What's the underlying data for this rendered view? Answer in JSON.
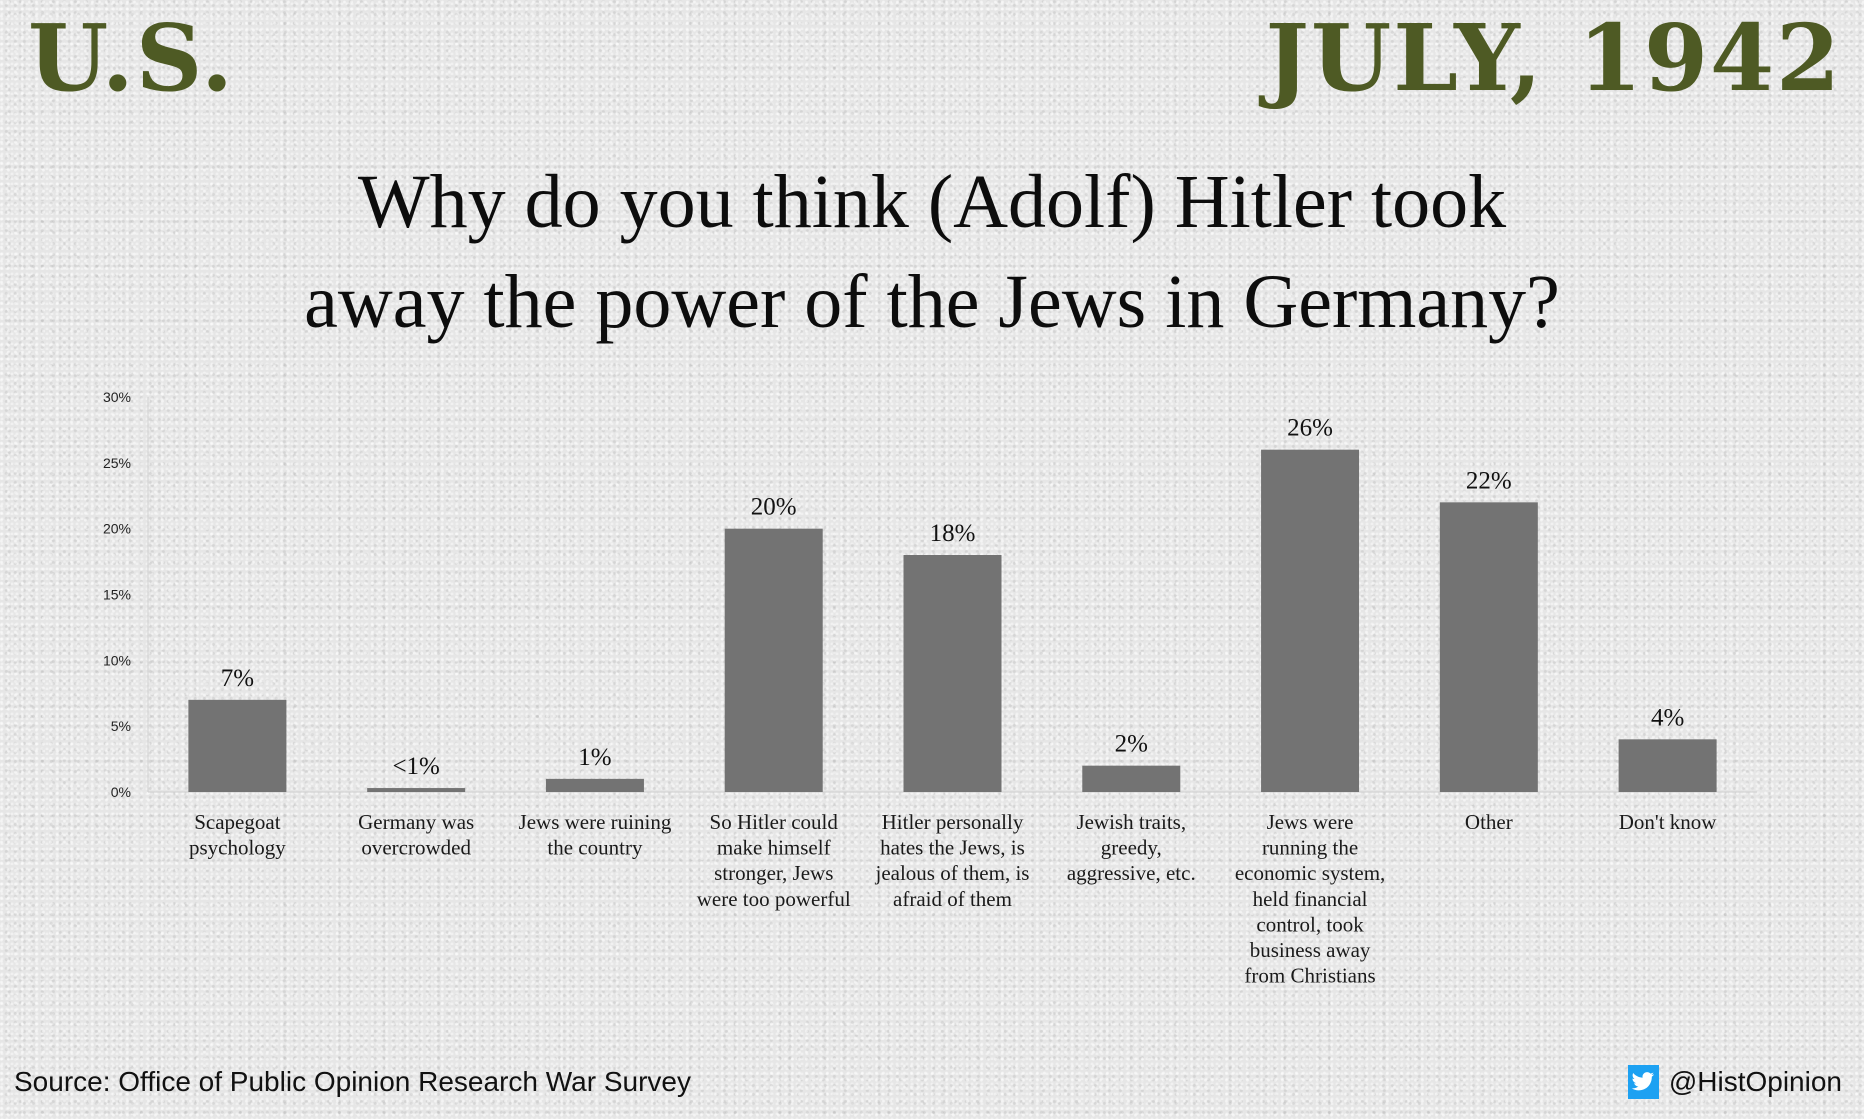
{
  "header": {
    "country": "U.S.",
    "date": "JULY, 1942",
    "accent_color": "#4e5a24"
  },
  "chart_data": {
    "type": "bar",
    "title_lines": [
      "Why do you think (Adolf) Hitler took",
      "away the power of  the Jews in Germany?"
    ],
    "xlabel": "",
    "ylabel": "",
    "ylim": [
      0,
      30
    ],
    "yticks": [
      0,
      5,
      10,
      15,
      20,
      25,
      30
    ],
    "ytick_labels": [
      "0%",
      "5%",
      "10%",
      "15%",
      "20%",
      "25%",
      "30%"
    ],
    "grid": false,
    "bar_color": "#737373",
    "categories": [
      [
        "Scapegoat",
        "psychology"
      ],
      [
        "Germany was",
        "overcrowded"
      ],
      [
        "Jews were ruining",
        "the country"
      ],
      [
        "So Hitler could",
        "make himself",
        "stronger, Jews",
        "were too powerful"
      ],
      [
        "Hitler personally",
        "hates the Jews, is",
        "jealous of them, is",
        "afraid of them"
      ],
      [
        "Jewish traits,",
        "greedy,",
        "aggressive, etc."
      ],
      [
        "Jews were",
        "running the",
        "economic system,",
        "held financial",
        "control, took",
        "business away",
        "from Christians"
      ],
      [
        "Other"
      ],
      [
        "Don't know"
      ]
    ],
    "values": [
      7,
      0.3,
      1,
      20,
      18,
      2,
      26,
      22,
      4
    ],
    "data_labels": [
      "7%",
      "<1%",
      "1%",
      "20%",
      "18%",
      "2%",
      "26%",
      "22%",
      "4%"
    ]
  },
  "footer": {
    "source": "Source: Office of Public Opinion Research War Survey",
    "handle": "@HistOpinion",
    "icon": "twitter-bird-icon",
    "icon_color": "#1da1f2"
  }
}
